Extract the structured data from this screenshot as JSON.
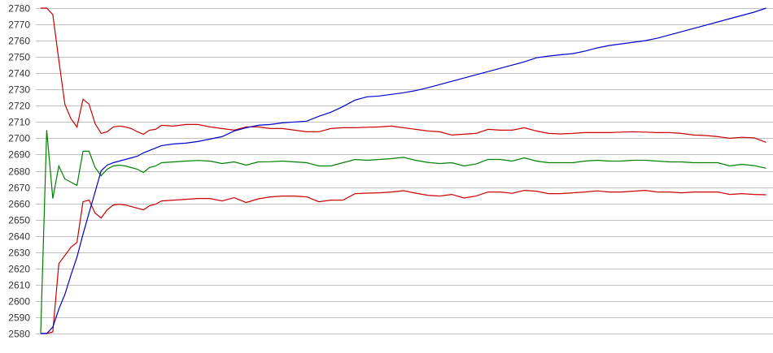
{
  "chart_data": {
    "type": "line",
    "title": "",
    "xlabel": "",
    "ylabel": "",
    "ylim": [
      2580,
      2780
    ],
    "y_ticks": [
      2580,
      2590,
      2600,
      2610,
      2620,
      2630,
      2640,
      2650,
      2660,
      2670,
      2680,
      2690,
      2700,
      2710,
      2720,
      2730,
      2740,
      2750,
      2760,
      2770,
      2780
    ],
    "grid": "horizontal",
    "legend": "none",
    "x": [
      0,
      1,
      2,
      3,
      4,
      5,
      6,
      7,
      8,
      9,
      10,
      11,
      12,
      13,
      14,
      15,
      16,
      17,
      18,
      19,
      20,
      22,
      24,
      26,
      28,
      30,
      32,
      34,
      36,
      38,
      40,
      42,
      44,
      46,
      48,
      50,
      52,
      54,
      56,
      58,
      60,
      62,
      64,
      66,
      68,
      70,
      72,
      74,
      76,
      78,
      80,
      82,
      84,
      86,
      88,
      90,
      92,
      94,
      96,
      98,
      100,
      102,
      104,
      106,
      108,
      110,
      112,
      114,
      116,
      118,
      120
    ],
    "xlim": [
      0,
      120
    ],
    "series": [
      {
        "color": "#cc0000",
        "values": [
          2780,
          2780,
          2776,
          2748,
          2721,
          2712,
          2707,
          2724,
          2721,
          2709,
          2703,
          2704,
          2707,
          2707.5,
          2707,
          2706,
          2704,
          2702.5,
          2705,
          2705.5,
          2708,
          2707.5,
          2708.5,
          2708.5,
          2707,
          2706,
          2705,
          2707,
          2707,
          2706,
          2706,
          2705,
          2704,
          2704,
          2706,
          2706.5,
          2706.5,
          2706.8,
          2707,
          2707.5,
          2706.5,
          2705.5,
          2704.5,
          2704,
          2702,
          2702.5,
          2703,
          2705.5,
          2705,
          2705,
          2706.5,
          2704.5,
          2703,
          2702.7,
          2703,
          2703.5,
          2703.5,
          2703.5,
          2703.8,
          2704,
          2703.8,
          2703.5,
          2703.5,
          2703,
          2702,
          2701.7,
          2701,
          2700,
          2700.6,
          2700.3,
          2697.5
        ]
      },
      {
        "color": "#008000",
        "values": [
          2580,
          2705,
          2663,
          2683,
          2675,
          2673,
          2671,
          2692,
          2692,
          2682,
          2677,
          2681,
          2683,
          2683.5,
          2683,
          2682,
          2681,
          2679,
          2682,
          2683,
          2685,
          2685.5,
          2686,
          2686.4,
          2686,
          2684.5,
          2685.5,
          2683.5,
          2685.5,
          2685.6,
          2686,
          2685.5,
          2685,
          2683,
          2683,
          2685,
          2687,
          2686.5,
          2687,
          2687.5,
          2688.3,
          2686.5,
          2685.2,
          2684.5,
          2685,
          2683,
          2684.2,
          2687,
          2687,
          2686,
          2688,
          2686,
          2685,
          2685,
          2685,
          2686,
          2686.5,
          2686,
          2686,
          2686.5,
          2686.5,
          2686,
          2685.5,
          2685.5,
          2685,
          2685,
          2685,
          2683,
          2684,
          2683.2,
          2681.6
        ]
      },
      {
        "color": "#cc0000",
        "values": [
          2580,
          2580,
          2581,
          2623,
          2628,
          2633,
          2636,
          2661,
          2662,
          2654,
          2651,
          2656,
          2659,
          2659.5,
          2659,
          2658,
          2657,
          2656,
          2658.5,
          2659.5,
          2661.5,
          2662,
          2662.5,
          2663,
          2663,
          2661.5,
          2663.5,
          2660.5,
          2662.8,
          2664,
          2664.5,
          2664.5,
          2664,
          2661,
          2662,
          2662,
          2666,
          2666.3,
          2666.5,
          2667,
          2667.8,
          2666.3,
          2665,
          2664.5,
          2665.5,
          2663.3,
          2664.5,
          2667,
          2667,
          2666.2,
          2668,
          2667.5,
          2666,
          2666,
          2666.5,
          2667,
          2667.7,
          2667,
          2667,
          2667.5,
          2668,
          2667,
          2667,
          2666.5,
          2667,
          2667,
          2667,
          2665.5,
          2666,
          2665.5,
          2665.3
        ]
      },
      {
        "color": "#0000cc",
        "values": [
          2580,
          2580,
          2584,
          2595,
          2604,
          2616,
          2627,
          2641,
          2654,
          2667,
          2680,
          2683.5,
          2685,
          2686,
          2687,
          2688,
          2689,
          2691,
          2692.5,
          2694,
          2695.5,
          2696.5,
          2697,
          2698,
          2699.5,
          2701,
          2704.5,
          2706.5,
          2708,
          2708.5,
          2709.5,
          2710,
          2710.5,
          2713.5,
          2716,
          2719.5,
          2723.5,
          2725.5,
          2726,
          2727,
          2728,
          2729.3,
          2731,
          2733,
          2735,
          2737,
          2739,
          2741,
          2743,
          2745,
          2747,
          2749.5,
          2750.5,
          2751.3,
          2752,
          2753.5,
          2755.5,
          2757,
          2758,
          2759,
          2760,
          2761.5,
          2763.5,
          2765.5,
          2767.5,
          2769.5,
          2771.5,
          2773.5,
          2775.5,
          2777.5,
          2780
        ]
      }
    ],
    "colors": {
      "grid": "#c0c0c0",
      "background": "#ffffff"
    }
  }
}
